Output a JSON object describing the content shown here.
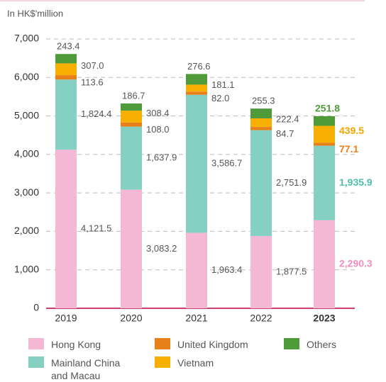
{
  "chart_data": {
    "type": "stacked_bar",
    "subtitle": "In HK$'million",
    "categories": [
      "2019",
      "2020",
      "2021",
      "2022",
      "2023"
    ],
    "series": [
      {
        "name": "Hong Kong",
        "color": "#f5b8d4",
        "label_color": "#f08cbf",
        "values": [
          4121.5,
          3083.2,
          1963.4,
          1877.5,
          2290.3
        ],
        "value_labels": [
          "4,121.5",
          "3,083.2",
          "1,963.4",
          "1,877.5",
          "2,290.3"
        ]
      },
      {
        "name": "Mainland China and Macau",
        "color": "#84d0c2",
        "label_color": "#4cbfae",
        "values": [
          1824.4,
          1637.9,
          3586.7,
          2751.9,
          1935.9
        ],
        "value_labels": [
          "1,824.4",
          "1,637.9",
          "3,586.7",
          "2,751.9",
          "1,935.9"
        ]
      },
      {
        "name": "United Kingdom",
        "color": "#e8801a",
        "label_color": "#e8801a",
        "values": [
          113.6,
          108.0,
          82.0,
          84.7,
          77.1
        ],
        "value_labels": [
          "113.6",
          "108.0",
          "82.0",
          "84.7",
          "77.1"
        ]
      },
      {
        "name": "Vietnam",
        "color": "#f7b000",
        "label_color": "#f0a800",
        "values": [
          307.0,
          308.4,
          181.1,
          222.4,
          439.5
        ],
        "value_labels": [
          "307.0",
          "308.4",
          "181.1",
          "222.4",
          "439.5"
        ]
      },
      {
        "name": "Others",
        "color": "#4f9b3a",
        "label_color": "#4f9b3a",
        "values": [
          243.4,
          186.7,
          276.6,
          255.3,
          251.8
        ],
        "value_labels": [
          "243.4",
          "186.7",
          "276.6",
          "255.3",
          "251.8"
        ]
      }
    ],
    "ylim": [
      0,
      7000
    ],
    "yticks": [
      0,
      {
        "value": 1000,
        "label": "1,000"
      },
      {
        "value": 2000,
        "label": "2,000"
      },
      {
        "value": 3000,
        "label": "3,000"
      },
      {
        "value": 4000,
        "label": "4,000"
      },
      {
        "value": 5000,
        "label": "5,000"
      },
      {
        "value": 6000,
        "label": "6,000"
      },
      {
        "value": 7000,
        "label": "7,000"
      }
    ],
    "grid": true
  }
}
